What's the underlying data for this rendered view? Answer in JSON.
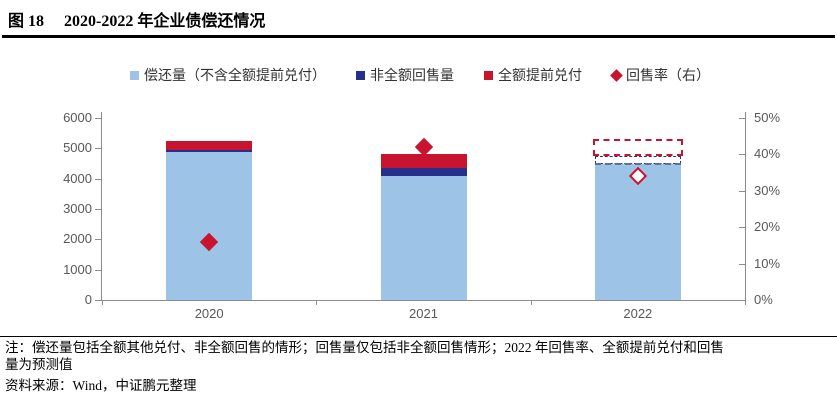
{
  "title": {
    "figure_label": "图 18",
    "text": "2020-2022 年企业债偿还情况"
  },
  "legend": {
    "items": [
      {
        "key": "repayment-ex-full-prepay",
        "label": "偿还量（不含全额提前兑付）",
        "marker": "square",
        "color": "#9DC3E6"
      },
      {
        "key": "partial-putback",
        "label": "非全额回售量",
        "marker": "square",
        "color": "#26308C"
      },
      {
        "key": "full-prepayment",
        "label": "全额提前兑付",
        "marker": "square",
        "color": "#C8142E"
      },
      {
        "key": "putback-rate",
        "label": "回售率（右）",
        "marker": "diamond",
        "color": "#C8142E"
      }
    ]
  },
  "chart_data": {
    "type": "bar",
    "subtype": "stacked-bars-with-scatter-overlay",
    "categories": [
      "2020",
      "2021",
      "2022"
    ],
    "series": [
      {
        "key": "repayment-ex-full-prepay",
        "name": "偿还量（不含全额提前兑付）",
        "type": "bar",
        "axis": "left",
        "color": "#9DC3E6",
        "values": [
          4870,
          4100,
          4480
        ]
      },
      {
        "key": "partial-putback",
        "name": "非全额回售量",
        "type": "bar",
        "axis": "left",
        "color": "#26308C",
        "values": [
          70,
          245,
          265
        ]
      },
      {
        "key": "full-prepayment",
        "name": "全额提前兑付",
        "type": "bar",
        "axis": "left",
        "color": "#C8142E",
        "values": [
          300,
          470,
          560
        ]
      },
      {
        "key": "putback-rate",
        "name": "回售率（右）",
        "type": "scatter",
        "axis": "right",
        "marker": "diamond",
        "color": "#C8142E",
        "values_pct": [
          16,
          42,
          34
        ]
      }
    ],
    "forecast_category": "2022",
    "forecast_style": "dashed-outline-segments-and-hollow-diamond",
    "left_axis": {
      "min": 0,
      "max": 6000,
      "tick_step": 1000,
      "ticks": [
        0,
        1000,
        2000,
        3000,
        4000,
        5000,
        6000
      ]
    },
    "right_axis": {
      "min": 0,
      "max": 50,
      "tick_step": 10,
      "ticks_pct": [
        "0%",
        "10%",
        "20%",
        "30%",
        "40%",
        "50%"
      ]
    },
    "grid": false,
    "legend_position": "top"
  },
  "notes": {
    "lines": [
      "注：偿还量包括全额其他兑付、非全额回售的情形；回售量仅包括非全额回售情形；2022 年回售率、全额提前兑付和回售",
      "量为预测值"
    ],
    "source": "资料来源：Wind，中证鹏元整理"
  },
  "colors": {
    "bar_light_blue": "#9DC3E6",
    "bar_navy": "#26308C",
    "bar_red": "#C8142E",
    "forecast_top_dash": "#5B7390",
    "axis_line": "#8c8c8c",
    "axis_label": "#595959"
  }
}
